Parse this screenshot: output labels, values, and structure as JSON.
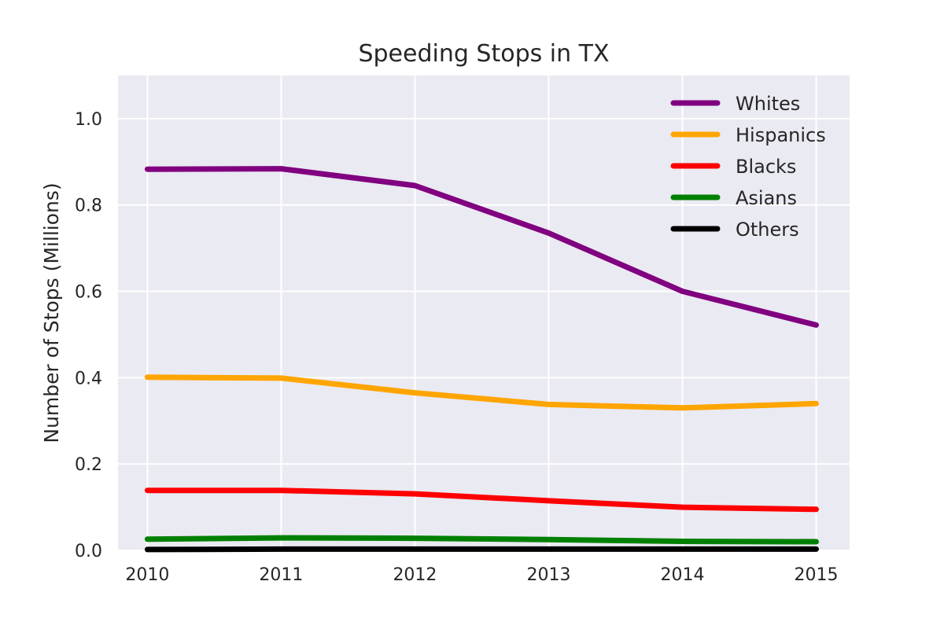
{
  "chart_data": {
    "type": "line",
    "title": "Speeding Stops in TX",
    "xlabel": "",
    "ylabel": "Number of Stops (Millions)",
    "x": [
      2010,
      2011,
      2012,
      2013,
      2014,
      2015
    ],
    "x_tick_labels": [
      "2010",
      "2011",
      "2012",
      "2013",
      "2014",
      "2015"
    ],
    "y_tick_labels": [
      "0.0",
      "0.2",
      "0.4",
      "0.6",
      "0.8",
      "1.0"
    ],
    "y_ticks": [
      0.0,
      0.2,
      0.4,
      0.6,
      0.8,
      1.0
    ],
    "xlim": [
      2009.78,
      2015.25
    ],
    "ylim": [
      0.0,
      1.1
    ],
    "grid": true,
    "legend_position": "top-right",
    "series": [
      {
        "name": "Whites",
        "color": "#800080",
        "values": [
          0.883,
          0.884,
          0.845,
          0.735,
          0.6,
          0.522
        ]
      },
      {
        "name": "Hispanics",
        "color": "#FFA500",
        "values": [
          0.401,
          0.399,
          0.365,
          0.338,
          0.33,
          0.34
        ]
      },
      {
        "name": "Blacks",
        "color": "#FF0000",
        "values": [
          0.139,
          0.139,
          0.131,
          0.115,
          0.1,
          0.095
        ]
      },
      {
        "name": "Asians",
        "color": "#008000",
        "values": [
          0.026,
          0.029,
          0.028,
          0.025,
          0.021,
          0.02
        ]
      },
      {
        "name": "Others",
        "color": "#000000",
        "values": [
          0.002,
          0.003,
          0.003,
          0.003,
          0.003,
          0.003
        ]
      }
    ]
  },
  "colors": {
    "plot_background": "#EAEAF2",
    "grid": "#FFFFFF",
    "text": "#262626"
  }
}
